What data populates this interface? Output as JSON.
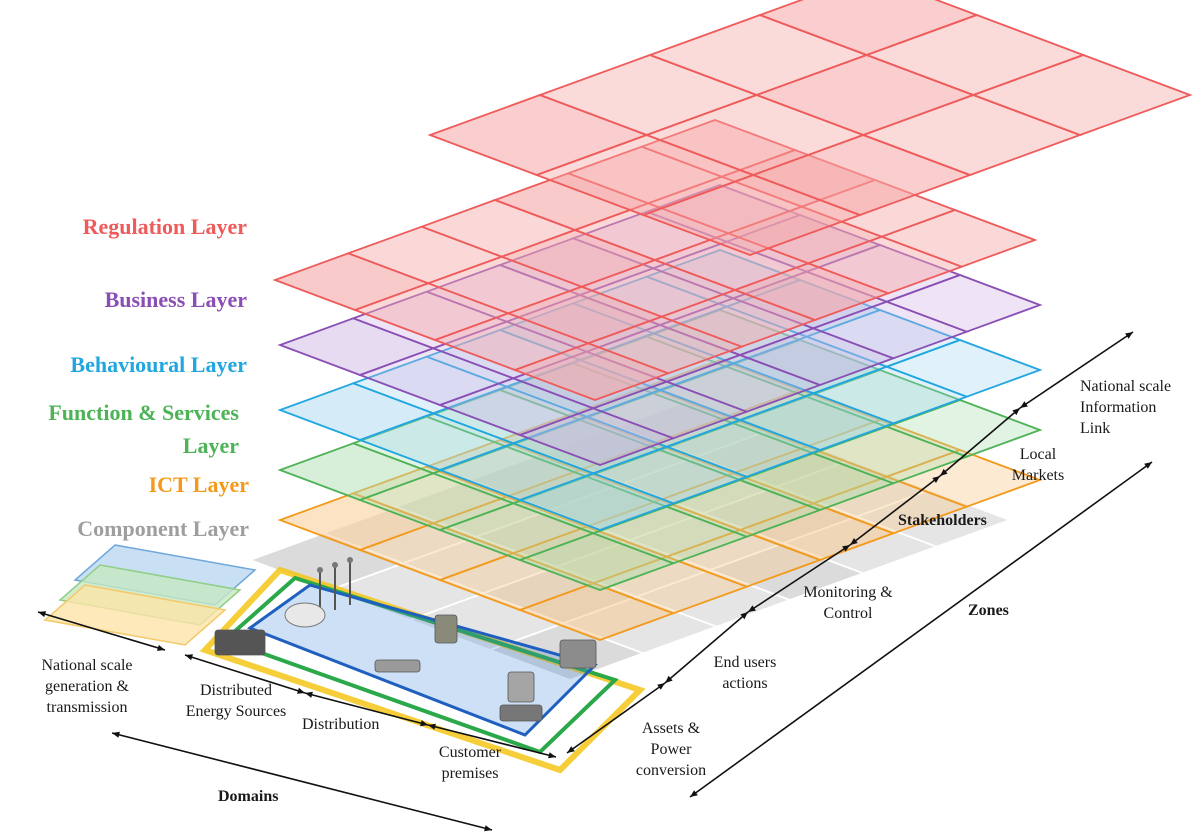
{
  "layers": [
    {
      "key": "component",
      "label": "Component Layer",
      "color": "#9e9e9e"
    },
    {
      "key": "ict",
      "label": "ICT Layer",
      "color": "#f39a1c"
    },
    {
      "key": "function",
      "label_line1": "Function & Services",
      "label_line2": "Layer",
      "color": "#4db356"
    },
    {
      "key": "behavioural",
      "label": "Behavioural Layer",
      "color": "#21a6e0"
    },
    {
      "key": "business",
      "label": "Business Layer",
      "color": "#8a4fb5"
    },
    {
      "key": "regulation",
      "label": "Regulation Layer",
      "color": "#ef5a5a"
    }
  ],
  "domains": {
    "title": "Domains",
    "items": [
      {
        "line1": "National scale",
        "line2": "generation &",
        "line3": "transmission"
      },
      {
        "line1": "Distributed",
        "line2": "Energy Sources"
      },
      {
        "line1": "Distribution"
      },
      {
        "line1": "Customer",
        "line2": "premises"
      }
    ]
  },
  "zones": {
    "title": "Zones",
    "items": [
      {
        "line1": "Assets &",
        "line2": "Power",
        "line3": "conversion"
      },
      {
        "line1": "End users",
        "line2": "actions"
      },
      {
        "line1": "Monitoring &",
        "line2": "Control"
      },
      {
        "line1": "Stakeholders"
      },
      {
        "line1": "Local",
        "line2": "Markets"
      },
      {
        "line1": "National scale",
        "line2": "Information",
        "line3": "Link"
      }
    ]
  },
  "icons": [
    "wind-turbine-icon",
    "gas-tank-icon",
    "transformer-icon",
    "power-plant-icon",
    "pipeline-icon",
    "house-icon",
    "radiator-icon",
    "electric-car-icon"
  ]
}
